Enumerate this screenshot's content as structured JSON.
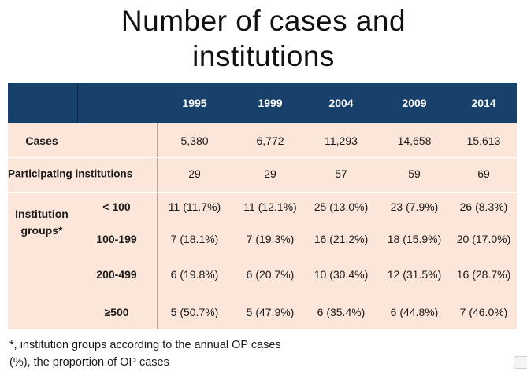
{
  "title": {
    "line1": "Number of cases and",
    "line2": "institutions"
  },
  "table": {
    "years": [
      "1995",
      "1999",
      "2004",
      "2009",
      "2014"
    ],
    "cases": {
      "label": "Cases",
      "values": [
        "5,380",
        "6,772",
        "11,293",
        "14,658",
        "15,613"
      ]
    },
    "institutions": {
      "label": "Participating institutions",
      "values": [
        "29",
        "29",
        "57",
        "59",
        "69"
      ]
    },
    "groups": {
      "label_line1": "Institution",
      "label_line2": "groups*",
      "rows": [
        {
          "label": "< 100",
          "values": [
            "11 (11.7%)",
            "11 (12.1%)",
            "25 (13.0%)",
            "23 (7.9%)",
            "26 (8.3%)"
          ]
        },
        {
          "label": "100-199",
          "values": [
            "7 (18.1%)",
            "7 (19.3%)",
            "16 (21.2%)",
            "18 (15.9%)",
            "20 (17.0%)"
          ]
        },
        {
          "label": "200-499",
          "values": [
            "6 (19.8%)",
            "6 (20.7%)",
            "10 (30.4%)",
            "12 (31.5%)",
            "16 (28.7%)"
          ]
        },
        {
          "label": "≥500",
          "values": [
            "5 (50.7%)",
            "5 (47.9%)",
            "6 (35.4%)",
            "6 (44.8%)",
            "7 (46.0%)"
          ]
        }
      ]
    }
  },
  "footnotes": [
    "*, institution groups according to the annual OP cases",
    "(%), the proportion of  OP cases"
  ],
  "colors": {
    "header_bg": "#17406b",
    "body_bg": "#fbe6d9",
    "header_text": "#ffffff"
  }
}
